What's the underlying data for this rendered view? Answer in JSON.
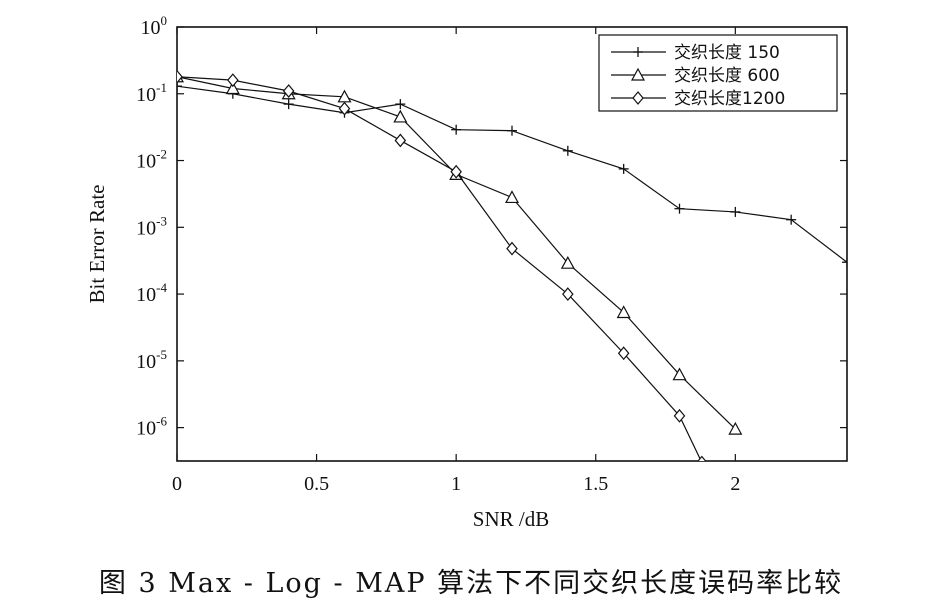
{
  "caption": "图 3   Max - Log - MAP 算法下不同交织长度误码率比较",
  "chart_data": {
    "type": "line",
    "xlabel": "SNR /dB",
    "ylabel": "Bit Error Rate",
    "xlim": [
      0,
      2.4
    ],
    "ylim_exponents": [
      -6.5,
      0
    ],
    "yscale": "log",
    "grid": false,
    "legend_position": "top-right",
    "x_ticks": [
      {
        "value": 0,
        "label": "0"
      },
      {
        "value": 0.5,
        "label": "0.5"
      },
      {
        "value": 1,
        "label": "1"
      },
      {
        "value": 1.5,
        "label": "1.5"
      },
      {
        "value": 2,
        "label": "2"
      }
    ],
    "y_ticks": [
      {
        "exp": 0,
        "base": "10",
        "sup": "0"
      },
      {
        "exp": -1,
        "base": "10",
        "sup": "-1"
      },
      {
        "exp": -2,
        "base": "10",
        "sup": "-2"
      },
      {
        "exp": -3,
        "base": "10",
        "sup": "-3"
      },
      {
        "exp": -4,
        "base": "10",
        "sup": "-4"
      },
      {
        "exp": -5,
        "base": "10",
        "sup": "-5"
      },
      {
        "exp": -6,
        "base": "10",
        "sup": "-6"
      }
    ],
    "series": [
      {
        "name": "交织长度 150",
        "marker": "plus",
        "x": [
          0,
          0.2,
          0.4,
          0.6,
          0.8,
          1.0,
          1.2,
          1.4,
          1.6,
          1.8,
          2.0,
          2.2,
          2.4
        ],
        "y": [
          0.13,
          0.1,
          0.07,
          0.052,
          0.07,
          0.029,
          0.028,
          0.014,
          0.0075,
          0.0019,
          0.0017,
          0.0013,
          0.0003
        ]
      },
      {
        "name": "交织长度 600",
        "marker": "triangle",
        "x": [
          0,
          0.2,
          0.4,
          0.6,
          0.8,
          1.0,
          1.2,
          1.4,
          1.6,
          1.8,
          2.0
        ],
        "y": [
          0.18,
          0.12,
          0.1,
          0.09,
          0.045,
          0.0062,
          0.0028,
          0.00029,
          5.3e-05,
          6.2e-06,
          9.5e-07
        ]
      },
      {
        "name": "交织长度1200",
        "marker": "diamond",
        "x": [
          0,
          0.2,
          0.4,
          0.6,
          0.8,
          1.0,
          1.2,
          1.4,
          1.6,
          1.8,
          1.88
        ],
        "y": [
          0.18,
          0.16,
          0.11,
          0.06,
          0.02,
          0.0068,
          0.00048,
          0.0001,
          1.3e-05,
          1.5e-06,
          3e-07
        ]
      }
    ]
  }
}
